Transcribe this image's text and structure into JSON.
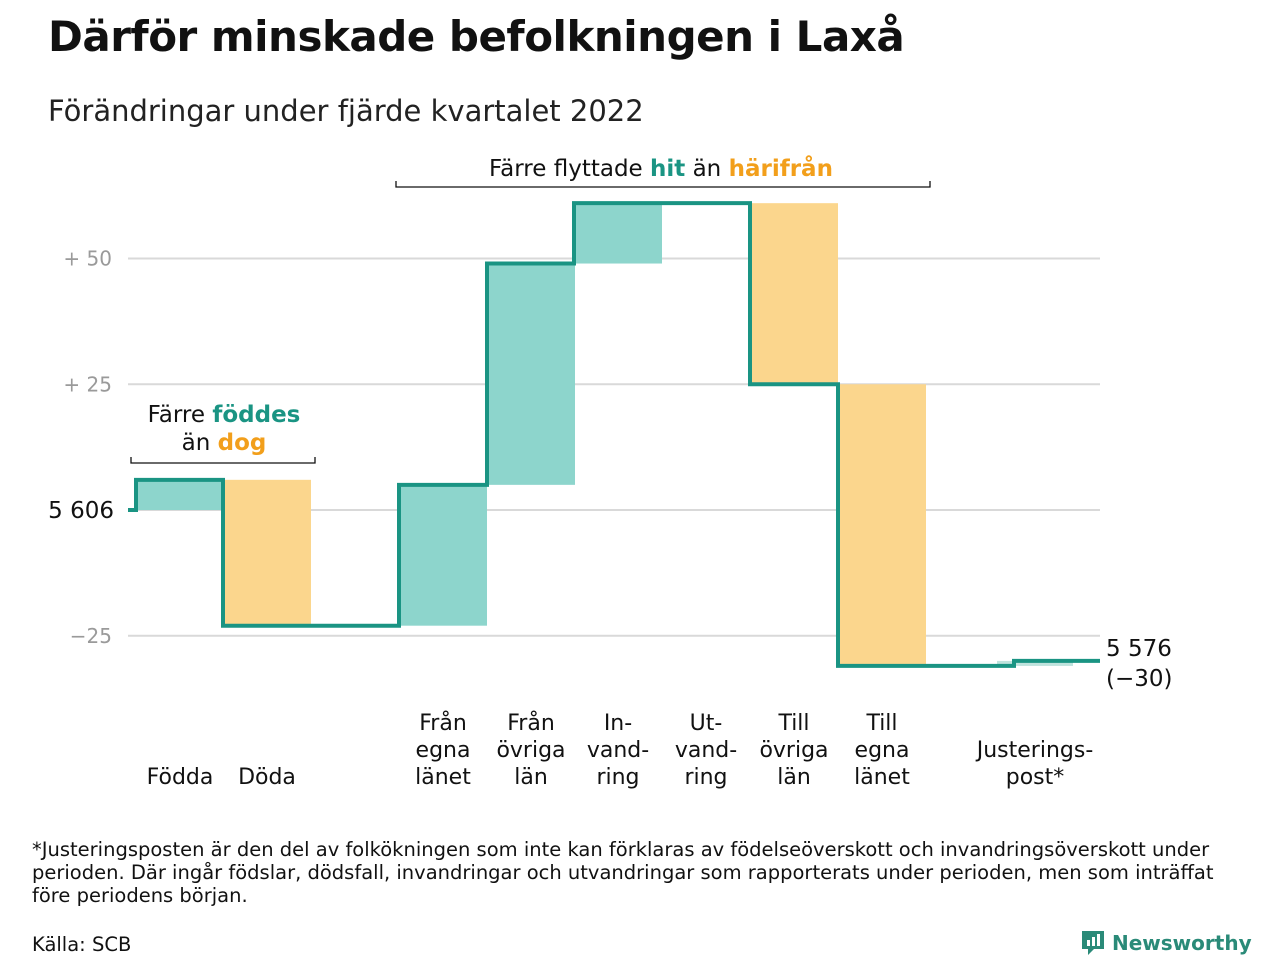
{
  "title": "Därför minskade befolkningen i Laxå",
  "subtitle": "Förändringar under fjärde kvartalet 2022",
  "chart_data": {
    "type": "waterfall",
    "start_value": 5606,
    "start_label": "5 606",
    "end_value": 5576,
    "end_label": "5 576",
    "end_change_label": "(−30)",
    "y_ticks": [
      {
        "value": 50,
        "label": "+ 50"
      },
      {
        "value": 25,
        "label": "+ 25"
      },
      {
        "value": -25,
        "label": "−25"
      }
    ],
    "ylim": [
      -32,
      61
    ],
    "grid": true,
    "categories": [
      {
        "label": "Födda",
        "from": 0,
        "to": 6,
        "kind": "in"
      },
      {
        "label": "Döda",
        "from": 6,
        "to": -23,
        "kind": "out"
      },
      {
        "label": "Från egna länet",
        "from": -23,
        "to": 5,
        "kind": "in"
      },
      {
        "label": "Från övriga län",
        "from": 5,
        "to": 49,
        "kind": "in"
      },
      {
        "label": "In-vand-ring",
        "from": 49,
        "to": 61,
        "kind": "in"
      },
      {
        "label": "Ut-vand-ring",
        "from": 61,
        "to": 61,
        "kind": "out"
      },
      {
        "label": "Till övriga län",
        "from": 61,
        "to": 25,
        "kind": "out"
      },
      {
        "label": "Till egna länet",
        "from": 25,
        "to": -31,
        "kind": "out"
      },
      {
        "label": "Justerings-post*",
        "from": -31,
        "to": -30,
        "kind": "adj"
      }
    ],
    "category_label_lines": [
      [
        "Födda"
      ],
      [
        "Döda"
      ],
      [
        "Från",
        "egna",
        "länet"
      ],
      [
        "Från",
        "övriga",
        "län"
      ],
      [
        "In-",
        "vand-",
        "ring"
      ],
      [
        "Ut-",
        "vand-",
        "ring"
      ],
      [
        "Till",
        "övriga",
        "län"
      ],
      [
        "Till",
        "egna",
        "länet"
      ],
      [
        "Justerings-",
        "post*"
      ]
    ],
    "annotations": {
      "births_line1_plain": "Färre",
      "births_line1_highlight": "föddes",
      "births_line2_plain": "än",
      "births_line2_highlight": "dog",
      "migration_plain1": "Färre flyttade",
      "migration_highlight1": "hit",
      "migration_plain2": "än",
      "migration_highlight2": "härifrån"
    },
    "colors": {
      "in_fill": "#8dd5cc",
      "out_fill": "#fbd68d",
      "adj_fill": "#bfe3dd",
      "step_line": "#1a9483",
      "grid": "#d9d9d9",
      "tick_text": "#9a9a9a",
      "highlight_in": "#1a9483",
      "highlight_out": "#f29f1b"
    }
  },
  "footnote": "*Justeringsposten är den del av folkökningen som inte kan förklaras av födelseöverskott och invandringsöverskott under perioden. Där ingår födslar, dödsfall, invandringar och utvandringar som rapporterats under perioden, men som inträffat före periodens början.",
  "source": "Källa: SCB",
  "brand": {
    "name": "Newsworthy",
    "icon": "newsworthy-logo-icon",
    "color": "#2a8a78"
  }
}
